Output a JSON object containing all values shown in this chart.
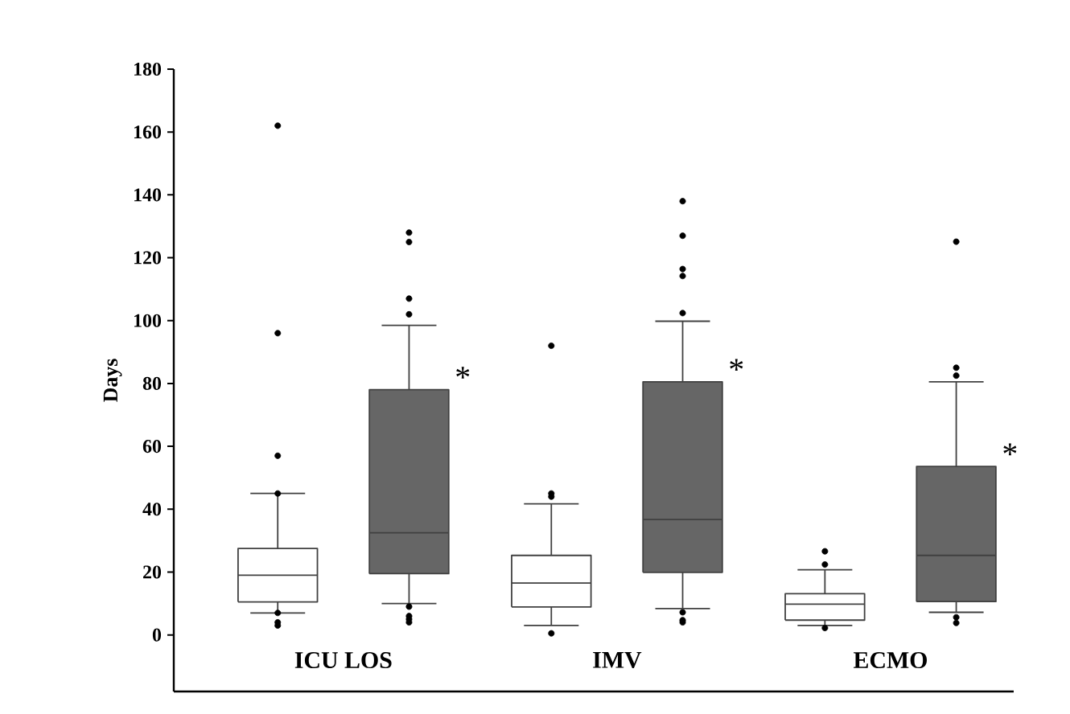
{
  "chart_data": {
    "type": "box",
    "ylabel": "Days",
    "categories": [
      "ICU LOS",
      "IMV",
      "ECMO"
    ],
    "ylim": [
      -18,
      180
    ],
    "yticks": [
      0,
      20,
      40,
      60,
      80,
      100,
      120,
      140,
      160,
      180
    ],
    "grid": false,
    "series": [
      {
        "color": "#ffffff",
        "boxes": [
          {
            "low": 7,
            "q1": 10.5,
            "median": 19,
            "q3": 27.5,
            "high": 45,
            "outliers": [
              3,
              4,
              7,
              45,
              57,
              96,
              162
            ]
          },
          {
            "low": 3,
            "q1": 8.9,
            "median": 16.5,
            "q3": 25.3,
            "high": 41.7,
            "outliers": [
              0.5,
              44,
              45,
              92
            ]
          },
          {
            "low": 3,
            "q1": 4.7,
            "median": 9.8,
            "q3": 13.1,
            "high": 20.7,
            "outliers": [
              2.2,
              22.4,
              26.6
            ]
          }
        ]
      },
      {
        "color": "#666666",
        "boxes": [
          {
            "low": 10,
            "q1": 19.5,
            "median": 32.5,
            "q3": 78,
            "high": 98.5,
            "outliers": [
              4,
              5,
              6,
              9,
              102,
              107,
              125,
              128
            ]
          },
          {
            "low": 8.4,
            "q1": 19.9,
            "median": 36.7,
            "q3": 80.5,
            "high": 99.8,
            "outliers": [
              4,
              4.7,
              7.2,
              102.4,
              114.2,
              116.4,
              127,
              138
            ]
          },
          {
            "low": 7.2,
            "q1": 10.6,
            "median": 25.3,
            "q3": 53.6,
            "high": 80.5,
            "outliers": [
              3.8,
              5.6,
              82.5,
              85,
              125.1
            ]
          }
        ]
      }
    ],
    "annotations": [
      "*",
      "*",
      "*"
    ]
  }
}
